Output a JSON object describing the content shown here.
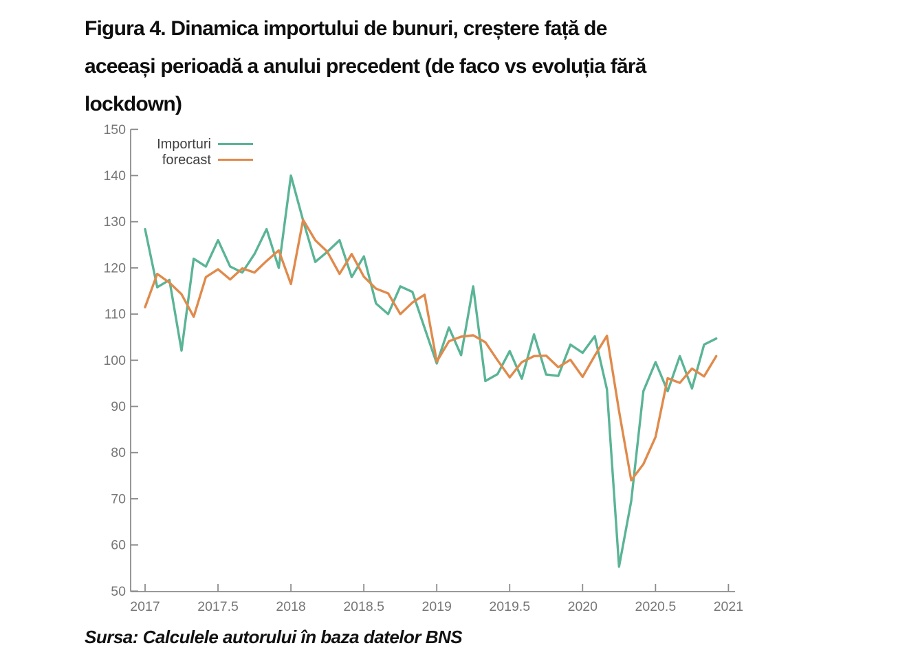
{
  "header": {
    "lines": [
      "Figura 4. Dinamica importului de bunuri, creștere față de",
      "aceeași perioadă a anului precedent (de faco vs evoluția fără",
      "lockdown)"
    ]
  },
  "source_note": "Sursa: Calculele autorului în baza datelor BNS",
  "colors": {
    "importuri": "#5ab496",
    "forecast": "#e08a4b",
    "axis": "#8c8c8c",
    "tick_label": "#777777",
    "legend_text": "#404040"
  },
  "chart_data": {
    "type": "line",
    "title": "Figura 4. Dinamica importului de bunuri, creștere față de aceeași perioadă a anului precedent (de faco vs evoluția fără lockdown)",
    "xlabel": "",
    "ylabel": "",
    "xlim": [
      2017,
      2021
    ],
    "ylim": [
      50,
      150
    ],
    "x_ticks": [
      2017,
      2017.5,
      2018,
      2018.5,
      2019,
      2019.5,
      2020,
      2020.5,
      2021
    ],
    "y_ticks": [
      50,
      60,
      70,
      80,
      90,
      100,
      110,
      120,
      130,
      140,
      150
    ],
    "grid": false,
    "legend_position": "top-left-inside",
    "x_start": 2017.0,
    "x_step_months": 1,
    "series": [
      {
        "name": "Importuri",
        "color": "#5ab496",
        "values": [
          128.4,
          115.8,
          117.4,
          102.1,
          122.0,
          120.3,
          126.0,
          120.3,
          119.0,
          123.0,
          128.4,
          120.0,
          140.0,
          130.3,
          121.3,
          123.5,
          126.0,
          118.0,
          122.5,
          112.3,
          110.0,
          116.0,
          114.8,
          107.0,
          99.3,
          107.1,
          101.1,
          116.0,
          95.5,
          97.0,
          102.0,
          96.0,
          105.6,
          96.9,
          96.6,
          103.4,
          101.6,
          105.2,
          93.7,
          55.3,
          69.5,
          93.3,
          99.6,
          93.3,
          100.9,
          93.9,
          103.4,
          104.7
        ]
      },
      {
        "name": "forecast",
        "color": "#e08a4b",
        "values": [
          111.5,
          118.7,
          116.8,
          114.3,
          109.4,
          118.0,
          119.7,
          117.5,
          119.9,
          119.0,
          121.5,
          123.8,
          116.5,
          130.4,
          126.0,
          123.5,
          118.7,
          123.0,
          118.1,
          115.5,
          114.5,
          110.0,
          112.5,
          114.2,
          99.7,
          104.1,
          105.1,
          105.4,
          103.9,
          100.0,
          96.3,
          99.6,
          100.9,
          101.0,
          98.5,
          100.1,
          96.4,
          101.0,
          105.3,
          89.0,
          74.0,
          77.5,
          83.4,
          96.1,
          95.1,
          98.2,
          96.5,
          100.9
        ]
      }
    ]
  }
}
